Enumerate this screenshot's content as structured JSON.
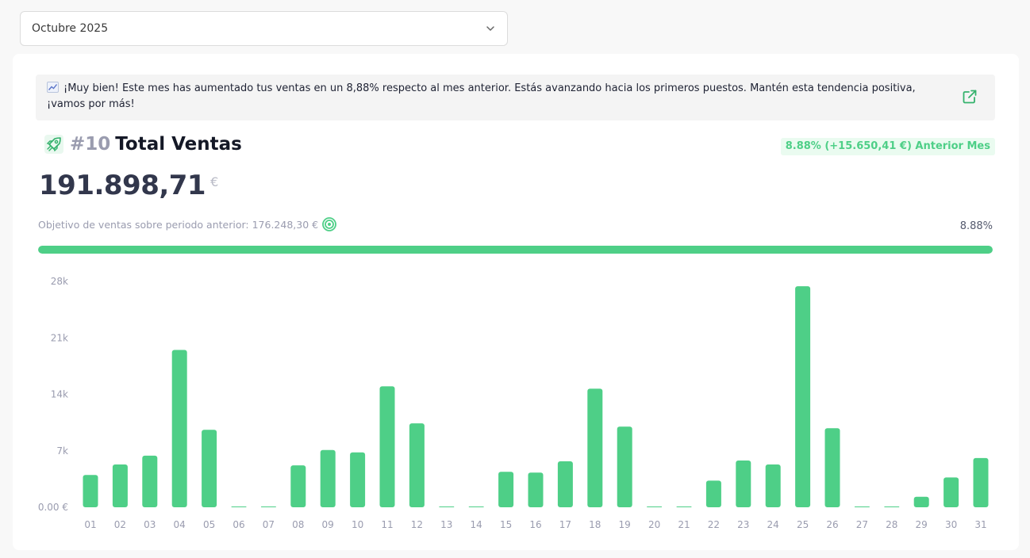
{
  "month_selector": {
    "value": "Octubre 2025"
  },
  "banner": {
    "text": "¡Muy bien! Este mes has aumentado tus ventas en un 8,88% respecto al mes anterior. Estás avanzando hacia los primeros puestos. Mantén esta tendencia positiva, ¡vamos por más!"
  },
  "header": {
    "rank": "#10",
    "title": "Total Ventas",
    "change_badge": "8.88% (+15.650,41 €) Anterior Mes"
  },
  "total": {
    "value": "191.898,71",
    "currency": "€"
  },
  "objective": {
    "label": "Objetivo de ventas sobre periodo anterior: 176.248,30 €",
    "progress_label": "8.88%",
    "progress_fraction": 1.0
  },
  "colors": {
    "accent": "#4ecf87",
    "text_dark": "#141826",
    "muted": "#9a9caf"
  },
  "icons": {
    "emoji": "chart-increasing-icon",
    "external": "external-link-icon",
    "rocket": "rocket-icon",
    "target": "target-icon",
    "chevron": "chevron-down-icon"
  },
  "chart_data": {
    "type": "bar",
    "categories": [
      "01",
      "02",
      "03",
      "04",
      "05",
      "06",
      "07",
      "08",
      "09",
      "10",
      "11",
      "12",
      "13",
      "14",
      "15",
      "16",
      "17",
      "18",
      "19",
      "20",
      "21",
      "22",
      "23",
      "24",
      "25",
      "26",
      "27",
      "28",
      "29",
      "30",
      "31"
    ],
    "values": [
      4000,
      5300,
      6400,
      19500,
      9600,
      0,
      0,
      5200,
      7100,
      6800,
      15000,
      10400,
      0,
      0,
      4400,
      4300,
      5700,
      14700,
      10000,
      0,
      0,
      3300,
      5800,
      5300,
      27400,
      9800,
      0,
      0,
      1300,
      3700,
      6100
    ],
    "y_ticks": [
      "28k",
      "21k",
      "14k",
      "7k",
      "0.00 €"
    ],
    "y_tick_values": [
      28000,
      21000,
      14000,
      7000,
      0
    ],
    "ylim": [
      0,
      28000
    ],
    "color": "#4ecf87"
  }
}
